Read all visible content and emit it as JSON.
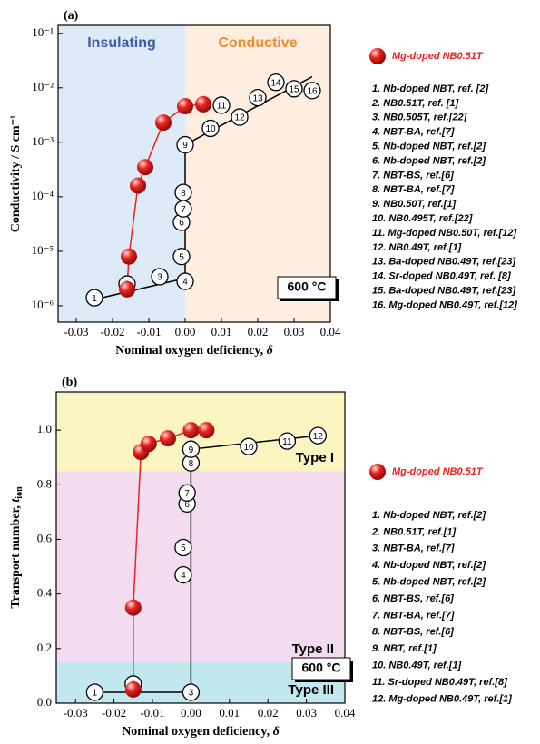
{
  "chart_data": [
    {
      "type": "scatter",
      "panel_label": "(a)",
      "log_y": true,
      "xlabel": "Nominal oxygen deficiency, ",
      "xlabel_symbol": "δ",
      "ylabel": "Conductivity / S cm⁻¹",
      "xlim": [
        -0.035,
        0.04
      ],
      "xticks": [
        -0.03,
        -0.02,
        -0.01,
        {
          "value": 0,
          "label": "0.00"
        },
        0.01,
        0.02,
        0.03,
        0.04
      ],
      "ylim": [
        5e-07,
        0.14
      ],
      "yticks": [
        {
          "value": 1e-06,
          "label": "10⁻⁶"
        },
        {
          "value": 1e-05,
          "label": "10⁻⁵"
        },
        {
          "value": 0.0001,
          "label": "10⁻⁴"
        },
        {
          "value": 0.001,
          "label": "10⁻³"
        },
        {
          "value": 0.01,
          "label": "10⁻²"
        },
        {
          "value": 0.1,
          "label": "10⁻¹"
        }
      ],
      "region_axis": "x",
      "regions": [
        {
          "from": -0.035,
          "to": 0,
          "color": "#dcebf7",
          "label": "Insulating",
          "label_color": "#3d5ba6"
        },
        {
          "from": 0,
          "to": 0.04,
          "color": "#fdeedf",
          "label": "Conductive",
          "label_color": "#ef8a2e"
        }
      ],
      "annotation": "600 °C",
      "series": [
        {
          "name": "Mg-doped NB0.51T",
          "color": "#e8231f",
          "x": [
            -0.016,
            -0.0155,
            -0.013,
            -0.011,
            -0.006,
            0,
            0.005
          ],
          "values": [
            2e-06,
            8e-06,
            0.00016,
            0.00035,
            0.0023,
            0.0046,
            0.005
          ]
        }
      ],
      "reference_points": {
        "labels": [
          "1",
          "2",
          "3",
          "4",
          "5",
          "6",
          "7",
          "8",
          "9",
          "10",
          "11",
          "12",
          "13",
          "14",
          "15",
          "16"
        ],
        "x": [
          -0.025,
          -0.016,
          -0.007,
          0,
          -0.001,
          -0.001,
          -0.0005,
          -0.0005,
          0,
          0.007,
          0.01,
          0.015,
          0.02,
          0.025,
          0.03,
          0.035
        ],
        "values": [
          1.4e-06,
          2.5e-06,
          3.4e-06,
          2.8e-06,
          8e-06,
          3.4e-05,
          6e-05,
          0.00012,
          0.0009,
          0.0018,
          0.0048,
          0.0029,
          0.0066,
          0.0126,
          0.0096,
          0.0089
        ]
      },
      "reference_line": {
        "x": [
          -0.025,
          0,
          0,
          0.035
        ],
        "values": [
          1.3e-06,
          3.2e-06,
          0.0009,
          0.016
        ]
      },
      "legend_entries": [
        "1. Nb-doped NBT, ref. [2]",
        "2. NB0.51T, ref. [1]",
        "3. NB0.505T, ref.[22]",
        "4. NBT-BA, ref.[7]",
        "5. Nb-doped NBT, ref.[2]",
        "6. Nb-doped NBT, ref.[2]",
        "7. NBT-BS, ref.[6]",
        "8. NBT-BA, ref.[7]",
        "9. NB0.50T, ref.[1]",
        "10. NB0.495T, ref.[22]",
        "11. Mg-doped NB0.50T, ref.[12]",
        "12. NB0.49T, ref.[1]",
        "13. Ba-doped NB0.49T, ref.[23]",
        "14. Sr-doped NB0.49T, ref. [8]",
        "15. Ba-doped NB0.49T, ref.[23]",
        "16. Mg-doped NB0.49T, ref.[12]"
      ]
    },
    {
      "type": "scatter",
      "panel_label": "(b)",
      "log_y": false,
      "xlabel": "Nominal oxygen deficiency, ",
      "xlabel_symbol": "δ",
      "ylabel": "Transport number, ",
      "ylabel_symbol": "t",
      "ylabel_sub": "ion",
      "xlim": [
        -0.035,
        0.04
      ],
      "xticks": [
        -0.03,
        -0.02,
        -0.01,
        {
          "value": 0,
          "label": "0.00"
        },
        0.01,
        0.02,
        0.03,
        0.04
      ],
      "ylim": [
        0,
        1.14
      ],
      "yticks": [
        {
          "value": 0,
          "label": "0.0"
        },
        0.2,
        0.4,
        0.6,
        0.8,
        {
          "value": 1,
          "label": "1.0"
        }
      ],
      "region_axis": "y",
      "regions": [
        {
          "from": 0.85,
          "to": 1.14,
          "color": "#fbf5c2",
          "label": "Type I",
          "label_color": "#000000"
        },
        {
          "from": 0.15,
          "to": 0.85,
          "color": "#f3dcef",
          "label": "Type II",
          "label_color": "#000000"
        },
        {
          "from": 0,
          "to": 0.15,
          "color": "#c3e7ee",
          "label": "Type III",
          "label_color": "#000000"
        }
      ],
      "annotation": "600 °C",
      "series": [
        {
          "name": "Mg-doped NB0.51T",
          "color": "#e8231f",
          "x": [
            -0.015,
            -0.015,
            -0.013,
            -0.011,
            -0.006,
            0,
            0.004
          ],
          "values": [
            0.05,
            0.35,
            0.92,
            0.95,
            0.97,
            1.0,
            1.0
          ]
        }
      ],
      "reference_points": {
        "labels": [
          "1",
          "2",
          "3",
          "4",
          "5",
          "6",
          "7",
          "8",
          "9",
          "10",
          "11",
          "12"
        ],
        "x": [
          -0.025,
          -0.015,
          0,
          -0.002,
          -0.002,
          -0.001,
          -0.001,
          0,
          0,
          0.015,
          0.025,
          0.033
        ],
        "values": [
          0.04,
          0.07,
          0.04,
          0.47,
          0.57,
          0.73,
          0.77,
          0.88,
          0.93,
          0.94,
          0.96,
          0.98
        ]
      },
      "reference_line": {
        "x": [
          -0.025,
          0,
          0,
          0.033
        ],
        "values": [
          0.04,
          0.04,
          0.93,
          0.98
        ]
      },
      "legend_entries": [
        "1. Nb-doped NBT, ref.[2]",
        "2. NB0.51T, ref.[1]",
        "3. NBT-BA, ref.[7]",
        "4. Nb-doped NBT, ref.[2]",
        "5. Nb-doped NBT, ref.[2]",
        "6. NBT-BS, ref.[6]",
        "7. NBT-BA, ref.[7]",
        "8. NBT-BS, ref.[6]",
        "9. NBT, ref.[1]",
        "10. NB0.49T, ref.[1]",
        "11. Sr-doped NB0.49T, ref.[8]",
        "12. Mg-doped NB0.49T, ref.[1]"
      ]
    }
  ]
}
